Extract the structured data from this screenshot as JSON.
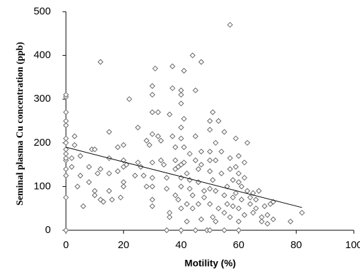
{
  "chart_data": {
    "type": "scatter",
    "y_label": "Seminal plasma Cu concentration  (ppb)",
    "x_label": "Motility (%)",
    "marker_color": "#666666",
    "trend_color": "#000000",
    "xlim": [
      0,
      100
    ],
    "xticks": [
      0,
      20,
      40,
      60,
      80,
      100
    ],
    "ylim": [
      0,
      500
    ],
    "yticks": [
      0,
      100,
      200,
      300,
      400,
      500
    ],
    "grid": false,
    "x": [
      0,
      0,
      0,
      0,
      0,
      0,
      0,
      0,
      0,
      0,
      0,
      0,
      0,
      0,
      0,
      2,
      3,
      3,
      2,
      4,
      5,
      5,
      6,
      8,
      9,
      10,
      8,
      10,
      10,
      12,
      11,
      12,
      12,
      13,
      15,
      15,
      15,
      15,
      16,
      18,
      18,
      19,
      20,
      20,
      20,
      20,
      20,
      21,
      22,
      24,
      25,
      25,
      26,
      27,
      28,
      28,
      29,
      30,
      30,
      30,
      31,
      30,
      30,
      30,
      30,
      30,
      30,
      32,
      32,
      33,
      33,
      34,
      35,
      35,
      35,
      36,
      36,
      36,
      37,
      37,
      37,
      38,
      38,
      38,
      38,
      39,
      39,
      40,
      40,
      40,
      40,
      40,
      40,
      40,
      40,
      40,
      40,
      41,
      41,
      41,
      41,
      42,
      42,
      42,
      43,
      43,
      43,
      44,
      44,
      44,
      45,
      45,
      45,
      45,
      46,
      46,
      46,
      47,
      47,
      47,
      47,
      48,
      48,
      49,
      50,
      50,
      50,
      50,
      50,
      50,
      50,
      50,
      51,
      51,
      51,
      52,
      52,
      52,
      52,
      53,
      53,
      54,
      54,
      55,
      55,
      55,
      55,
      56,
      56,
      57,
      57,
      57,
      57,
      58,
      58,
      58,
      59,
      59,
      59,
      60,
      60,
      60,
      60,
      60,
      60,
      61,
      61,
      62,
      62,
      62,
      63,
      63,
      64,
      64,
      65,
      65,
      66,
      66,
      67,
      68,
      68,
      69,
      70,
      70,
      71,
      72,
      72,
      78,
      82
    ],
    "values": [
      0,
      75,
      125,
      140,
      160,
      165,
      175,
      185,
      200,
      210,
      240,
      250,
      270,
      305,
      310,
      165,
      215,
      195,
      145,
      100,
      170,
      125,
      55,
      145,
      185,
      185,
      110,
      90,
      80,
      140,
      130,
      385,
      70,
      65,
      225,
      165,
      130,
      90,
      70,
      190,
      135,
      75,
      195,
      160,
      145,
      110,
      100,
      150,
      300,
      125,
      235,
      155,
      145,
      125,
      100,
      205,
      195,
      330,
      310,
      270,
      370,
      220,
      155,
      120,
      100,
      70,
      55,
      270,
      215,
      205,
      160,
      150,
      120,
      95,
      0,
      30,
      40,
      265,
      375,
      325,
      215,
      190,
      160,
      140,
      80,
      70,
      145,
      0,
      50,
      100,
      120,
      150,
      210,
      235,
      290,
      310,
      320,
      365,
      255,
      190,
      155,
      130,
      60,
      20,
      175,
      115,
      95,
      80,
      50,
      400,
      320,
      215,
      160,
      0,
      140,
      110,
      60,
      180,
      385,
      150,
      25,
      90,
      75,
      0,
      0,
      60,
      95,
      135,
      160,
      180,
      230,
      250,
      30,
      115,
      270,
      200,
      160,
      90,
      20,
      250,
      50,
      130,
      180,
      0,
      80,
      40,
      225,
      100,
      60,
      470,
      165,
      140,
      30,
      115,
      75,
      55,
      210,
      145,
      85,
      0,
      20,
      50,
      110,
      130,
      170,
      100,
      70,
      155,
      120,
      35,
      200,
      90,
      75,
      60,
      40,
      85,
      70,
      50,
      90,
      30,
      20,
      55,
      15,
      35,
      60,
      65,
      25,
      20,
      40
    ],
    "trend": {
      "x": [
        0,
        82
      ],
      "values": [
        190,
        52
      ]
    }
  }
}
